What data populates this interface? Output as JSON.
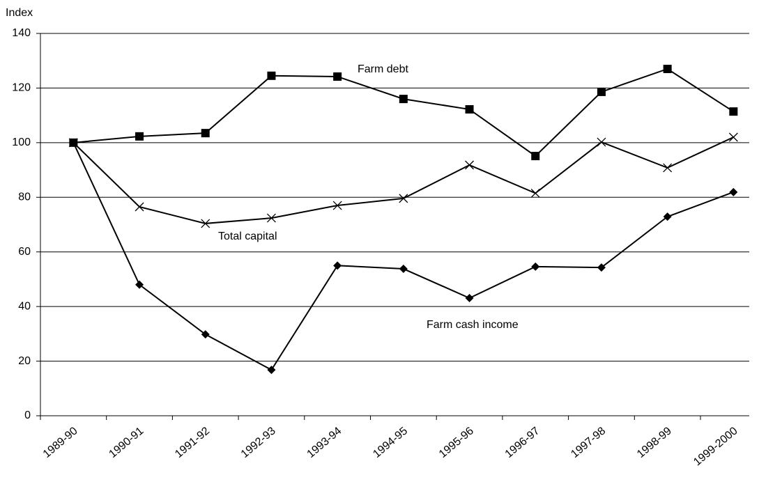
{
  "chart_data": {
    "type": "line",
    "y_label": "Index",
    "categories": [
      "1989-90",
      "1990-91",
      "1991-92",
      "1992-93",
      "1993-94",
      "1994-95",
      "1995-96",
      "1996-97",
      "1997-98",
      "1998-99",
      "1999-2000"
    ],
    "series": [
      {
        "name": "Farm debt",
        "color": "#000000",
        "marker": "square",
        "values": [
          100,
          102.3,
          103.5,
          124.5,
          124.2,
          116,
          112.2,
          95.1,
          118.6,
          127,
          111.4
        ]
      },
      {
        "name": "Total capital",
        "color": "#000000",
        "marker": "x",
        "values": [
          100,
          76.5,
          70.4,
          72.4,
          77,
          79.6,
          91.8,
          81.5,
          100.2,
          90.8,
          102
        ]
      },
      {
        "name": "Farm cash income",
        "color": "#000000",
        "marker": "diamond",
        "values": [
          100,
          48,
          29.8,
          16.8,
          55,
          53.8,
          43.1,
          54.6,
          54.3,
          72.9,
          81.9
        ]
      }
    ],
    "ylim": [
      0,
      140
    ],
    "yticks": [
      0,
      20,
      40,
      60,
      80,
      100,
      120,
      140
    ],
    "grid": true
  }
}
